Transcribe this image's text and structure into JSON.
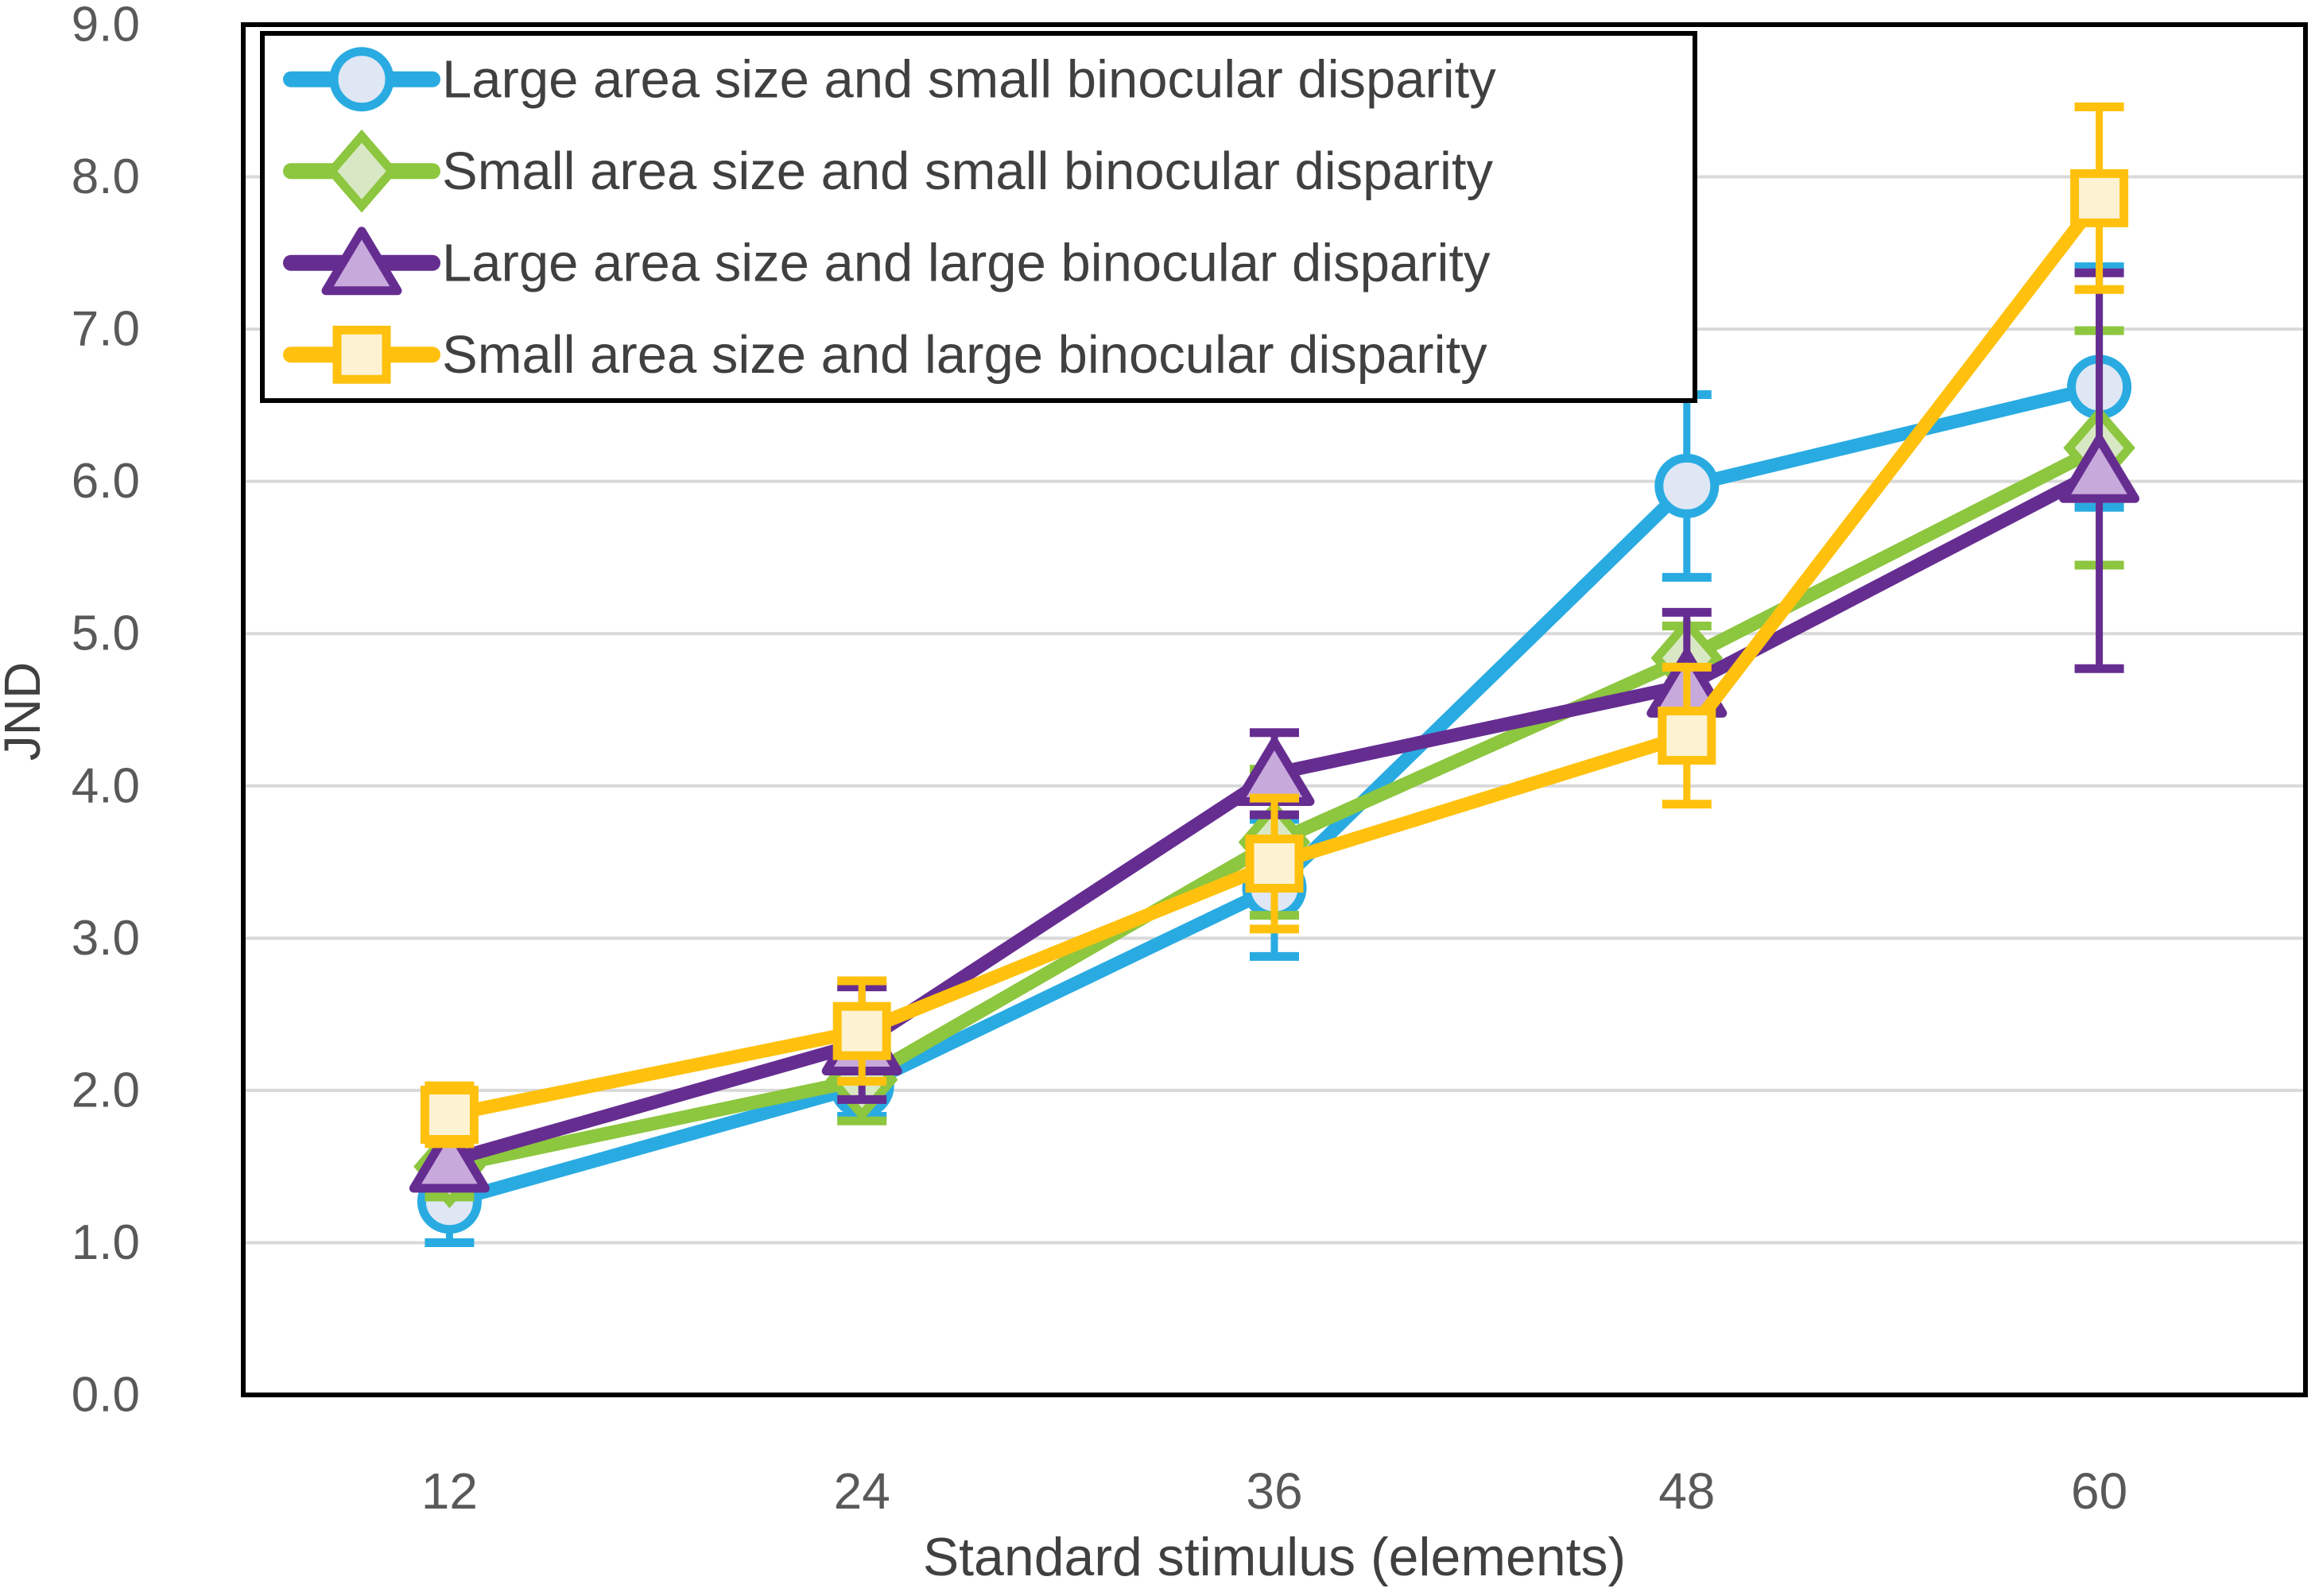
{
  "chart_data": {
    "type": "line",
    "title": "",
    "xlabel": "Standard stimulus (elements)",
    "ylabel": "JND",
    "categories": [
      "12",
      "24",
      "36",
      "48",
      "60"
    ],
    "ylim": [
      0.0,
      9.0
    ],
    "ytick_step": 1.0,
    "yticks": [
      "0.0",
      "1.0",
      "2.0",
      "3.0",
      "4.0",
      "5.0",
      "6.0",
      "7.0",
      "8.0",
      "9.0"
    ],
    "grid": true,
    "grid_color": "#D9D9D9",
    "axis_border_color": "#000000",
    "tick_label_color": "#595959",
    "title_label_color": "#404040",
    "legend_position": "top-left-inside",
    "error_bars": true,
    "series": [
      {
        "name": "Large area size and small binocular disparity",
        "marker": "circle",
        "color": "#29ABE2",
        "marker_fill": "#DEE7F3",
        "values": [
          1.27,
          2.03,
          3.33,
          5.97,
          6.62
        ],
        "errors": [
          0.27,
          0.2,
          0.45,
          0.6,
          0.79
        ]
      },
      {
        "name": "Small area size and small binocular disparity",
        "marker": "diamond",
        "color": "#8DC63F",
        "marker_fill": "#D9E8C4",
        "values": [
          1.5,
          2.07,
          3.63,
          4.84,
          6.22
        ],
        "errors": [
          0.2,
          0.27,
          0.48,
          0.21,
          0.77
        ]
      },
      {
        "name": "Large area size and large binocular disparity",
        "marker": "triangle",
        "color": "#662D91",
        "marker_fill": "#C7A9DB",
        "values": [
          1.54,
          2.31,
          4.08,
          4.66,
          6.07
        ],
        "errors": [
          0.15,
          0.37,
          0.27,
          0.48,
          1.3
        ]
      },
      {
        "name": "Small area size and large binocular disparity",
        "marker": "square",
        "color": "#FFC10E",
        "marker_fill": "#FDF3D3",
        "values": [
          1.84,
          2.39,
          3.49,
          4.33,
          7.86
        ],
        "errors": [
          0.19,
          0.33,
          0.43,
          0.45,
          0.6
        ]
      }
    ]
  }
}
